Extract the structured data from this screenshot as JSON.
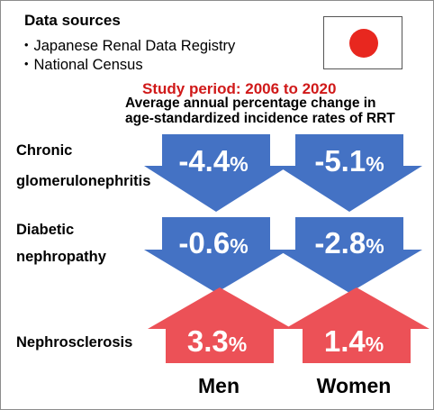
{
  "data_sources": {
    "title": "Data sources",
    "items": [
      "・Japanese Renal Data Registry",
      "・National Census"
    ]
  },
  "flag": {
    "name": "japan-flag",
    "disc_color": "#e8271f"
  },
  "study_period": "Study period: 2006 to 2020",
  "subtitle_lines": [
    "Average annual percentage change in",
    "age-standardized incidence rates of RRT"
  ],
  "colors": {
    "decrease": "#4472c4",
    "increase": "#ec5157",
    "period_text": "#d01919"
  },
  "rows": [
    {
      "label_lines": [
        "Chronic",
        "glomerulonephritis"
      ],
      "direction": "down",
      "men": {
        "value": "-4.4",
        "unit": "%"
      },
      "women": {
        "value": "-5.1",
        "unit": "%"
      }
    },
    {
      "label_lines": [
        "Diabetic",
        "nephropathy"
      ],
      "direction": "down",
      "men": {
        "value": "-0.6",
        "unit": "%"
      },
      "women": {
        "value": "-2.8",
        "unit": "%"
      }
    },
    {
      "label_lines": [
        "Nephrosclerosis"
      ],
      "direction": "up",
      "men": {
        "value": "3.3",
        "unit": "%"
      },
      "women": {
        "value": "1.4",
        "unit": "%"
      }
    }
  ],
  "columns": [
    "Men",
    "Women"
  ]
}
